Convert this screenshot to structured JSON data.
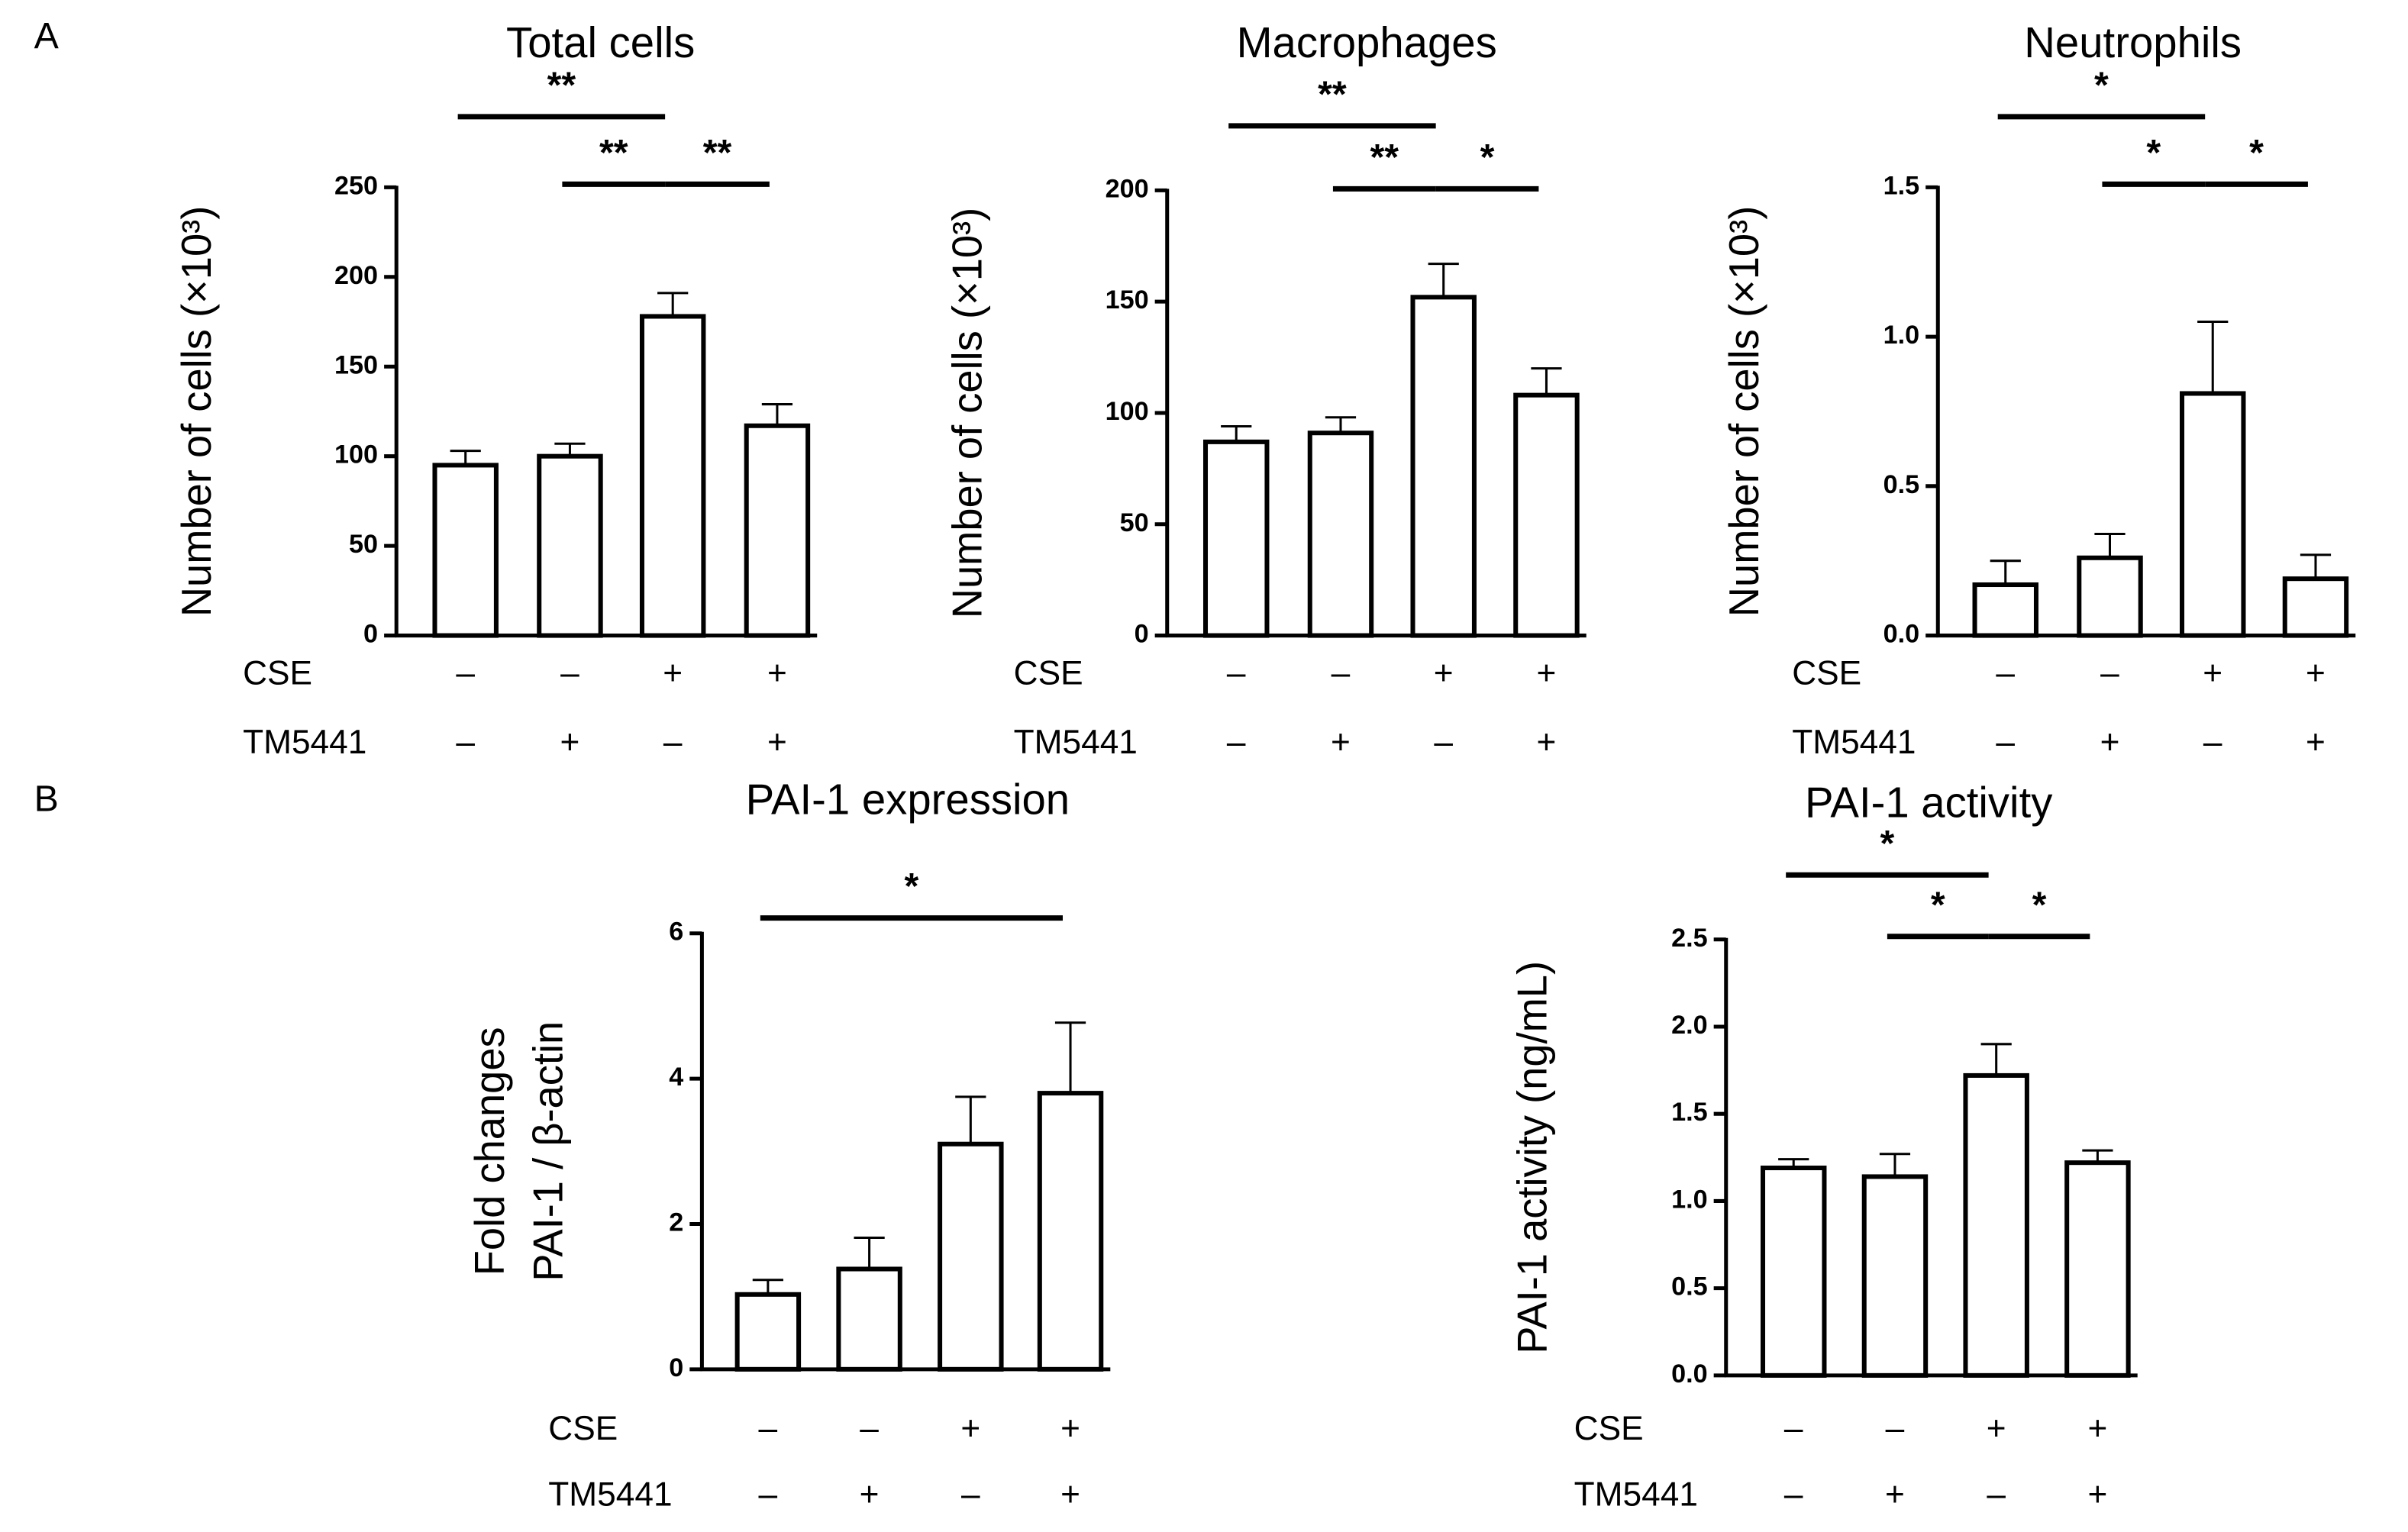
{
  "panels": [
    "A",
    "B"
  ],
  "chart_data": [
    {
      "type": "bar",
      "title": "Total cells",
      "ylabel": [
        "Number of cells (×10³)"
      ],
      "group_rows": [
        {
          "name": "CSE",
          "signs": [
            "–",
            "–",
            "+",
            "+"
          ]
        },
        {
          "name": "TM5441",
          "signs": [
            "–",
            "+",
            "–",
            "+"
          ]
        }
      ],
      "values": [
        95,
        100,
        178,
        117
      ],
      "errors": [
        8,
        7,
        13,
        12
      ],
      "color": "#ffffff",
      "ylim": [
        0,
        250
      ],
      "yticks": [
        0,
        50,
        100,
        150,
        200,
        250
      ],
      "significance": [
        {
          "groups": [
            0,
            2
          ],
          "label": "**"
        },
        {
          "groups": [
            1,
            2
          ],
          "label": "**"
        },
        {
          "groups": [
            2,
            3
          ],
          "label": "**"
        }
      ]
    },
    {
      "type": "bar",
      "title": "Macrophages",
      "ylabel": [
        "Number of cells (×10³)"
      ],
      "group_rows": [
        {
          "name": "CSE",
          "signs": [
            "–",
            "–",
            "+",
            "+"
          ]
        },
        {
          "name": "TM5441",
          "signs": [
            "–",
            "+",
            "–",
            "+"
          ]
        }
      ],
      "values": [
        87,
        91,
        152,
        108
      ],
      "errors": [
        7,
        7,
        15,
        12
      ],
      "color": "#ffffff",
      "ylim": [
        0,
        200
      ],
      "yticks": [
        0,
        50,
        100,
        150,
        200
      ],
      "significance": [
        {
          "groups": [
            0,
            2
          ],
          "label": "**"
        },
        {
          "groups": [
            1,
            2
          ],
          "label": "**"
        },
        {
          "groups": [
            2,
            3
          ],
          "label": "*"
        }
      ]
    },
    {
      "type": "bar",
      "title": "Neutrophils",
      "ylabel": [
        "Number of cells (×10³)"
      ],
      "group_rows": [
        {
          "name": "CSE",
          "signs": [
            "–",
            "–",
            "+",
            "+"
          ]
        },
        {
          "name": "TM5441",
          "signs": [
            "–",
            "+",
            "–",
            "+"
          ]
        }
      ],
      "values": [
        0.17,
        0.26,
        0.81,
        0.19
      ],
      "errors": [
        0.08,
        0.08,
        0.24,
        0.08
      ],
      "color": "#ffffff",
      "ylim": [
        0,
        1.5
      ],
      "yticks": [
        {
          "value": 0,
          "label": "0.0"
        },
        0.5,
        {
          "value": 1,
          "label": "1.0"
        },
        1.5
      ],
      "significance": [
        {
          "groups": [
            0,
            2
          ],
          "label": "*"
        },
        {
          "groups": [
            1,
            2
          ],
          "label": "*"
        },
        {
          "groups": [
            2,
            3
          ],
          "label": "*"
        }
      ]
    },
    {
      "type": "bar",
      "title": "PAI-1 expression",
      "ylabel": [
        "Fold changes",
        "PAI-1 / β-actin"
      ],
      "group_rows": [
        {
          "name": "CSE",
          "signs": [
            "–",
            "–",
            "+",
            "+"
          ]
        },
        {
          "name": "TM5441",
          "signs": [
            "–",
            "+",
            "–",
            "+"
          ]
        }
      ],
      "values": [
        1.03,
        1.38,
        3.1,
        3.8
      ],
      "errors": [
        0.2,
        0.43,
        0.65,
        0.97
      ],
      "color": "#ffffff",
      "ylim": [
        0,
        6
      ],
      "yticks": [
        0,
        2,
        4,
        6
      ],
      "significance": [
        {
          "groups": [
            0,
            3
          ],
          "label": "*"
        }
      ]
    },
    {
      "type": "bar",
      "title": "PAI-1 activity",
      "ylabel": [
        "PAI-1 activity (ng/mL)"
      ],
      "group_rows": [
        {
          "name": "CSE",
          "signs": [
            "–",
            "–",
            "+",
            "+"
          ]
        },
        {
          "name": "TM5441",
          "signs": [
            "–",
            "+",
            "–",
            "+"
          ]
        }
      ],
      "values": [
        1.19,
        1.14,
        1.72,
        1.22
      ],
      "errors": [
        0.05,
        0.13,
        0.18,
        0.07
      ],
      "color": "#ffffff",
      "ylim": [
        0,
        2.5
      ],
      "yticks": [
        {
          "value": 0,
          "label": "0.0"
        },
        0.5,
        {
          "value": 1,
          "label": "1.0"
        },
        1.5,
        {
          "value": 2,
          "label": "2.0"
        },
        2.5
      ],
      "significance": [
        {
          "groups": [
            0,
            2
          ],
          "label": "*"
        },
        {
          "groups": [
            1,
            2
          ],
          "label": "*"
        },
        {
          "groups": [
            2,
            3
          ],
          "label": "*"
        }
      ]
    }
  ]
}
